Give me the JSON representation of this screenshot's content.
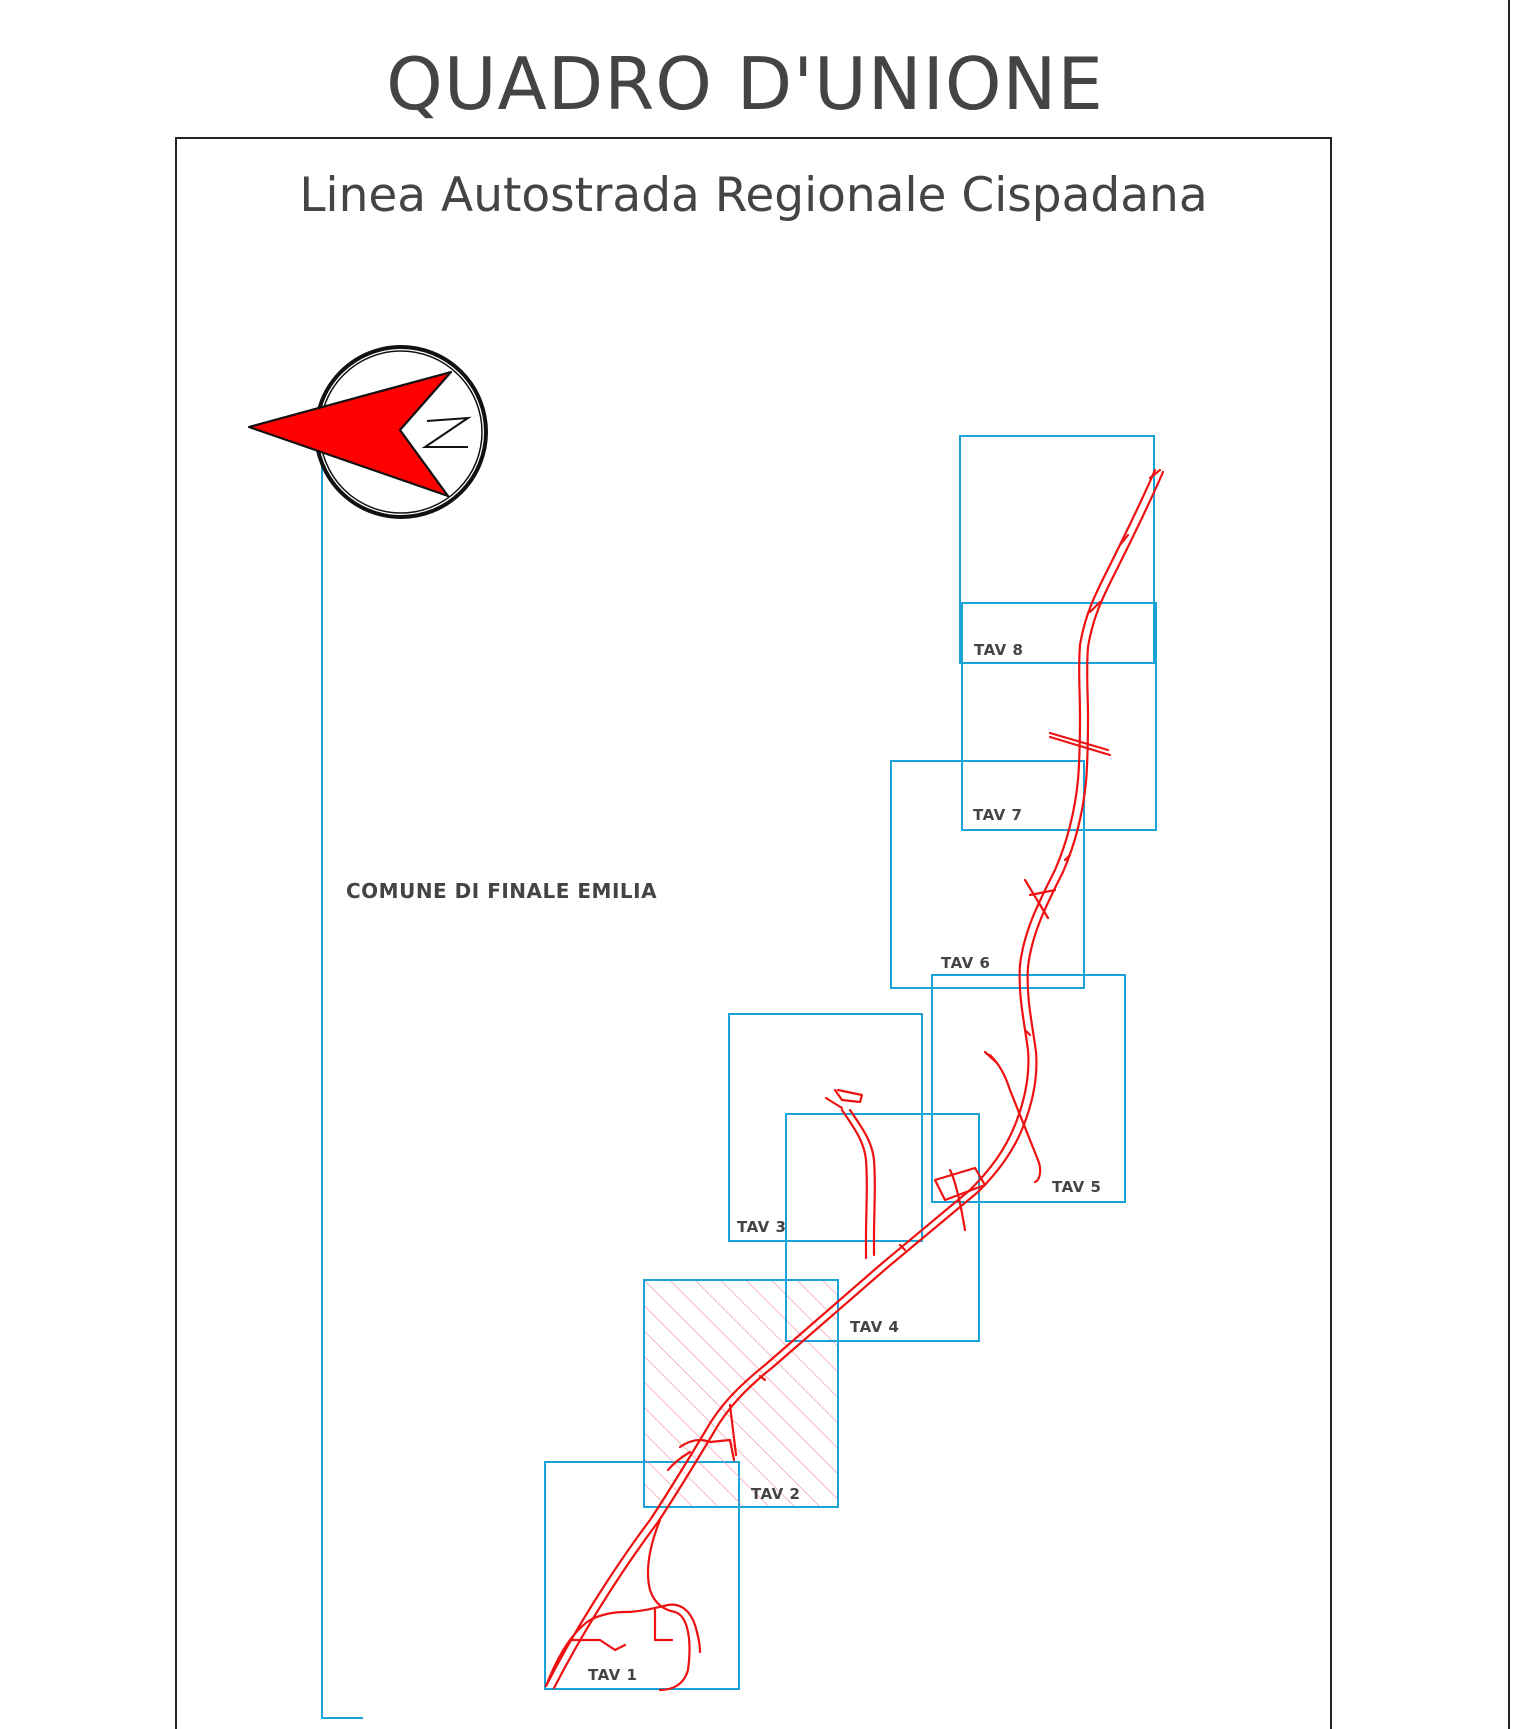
{
  "title": "QUADRO D'UNIONE",
  "subtitle": "Linea Autostrada Regionale Cispadana",
  "comune_label": "COMUNE DI FINALE EMILIA",
  "north_arrow": {
    "icon": "north-arrow-icon",
    "letter": "N",
    "color": "#ff0000"
  },
  "tiles": [
    {
      "label": "TAV 1",
      "highlighted": false
    },
    {
      "label": "TAV 2",
      "highlighted": true
    },
    {
      "label": "TAV 3",
      "highlighted": false
    },
    {
      "label": "TAV 4",
      "highlighted": false
    },
    {
      "label": "TAV 5",
      "highlighted": false
    },
    {
      "label": "TAV 6",
      "highlighted": false
    },
    {
      "label": "TAV 7",
      "highlighted": false
    },
    {
      "label": "TAV 8",
      "highlighted": false
    }
  ],
  "colors": {
    "tile_border": "#1aa3d9",
    "route": "#ee1111",
    "hatch": "#f08a9a",
    "text": "#444444"
  }
}
